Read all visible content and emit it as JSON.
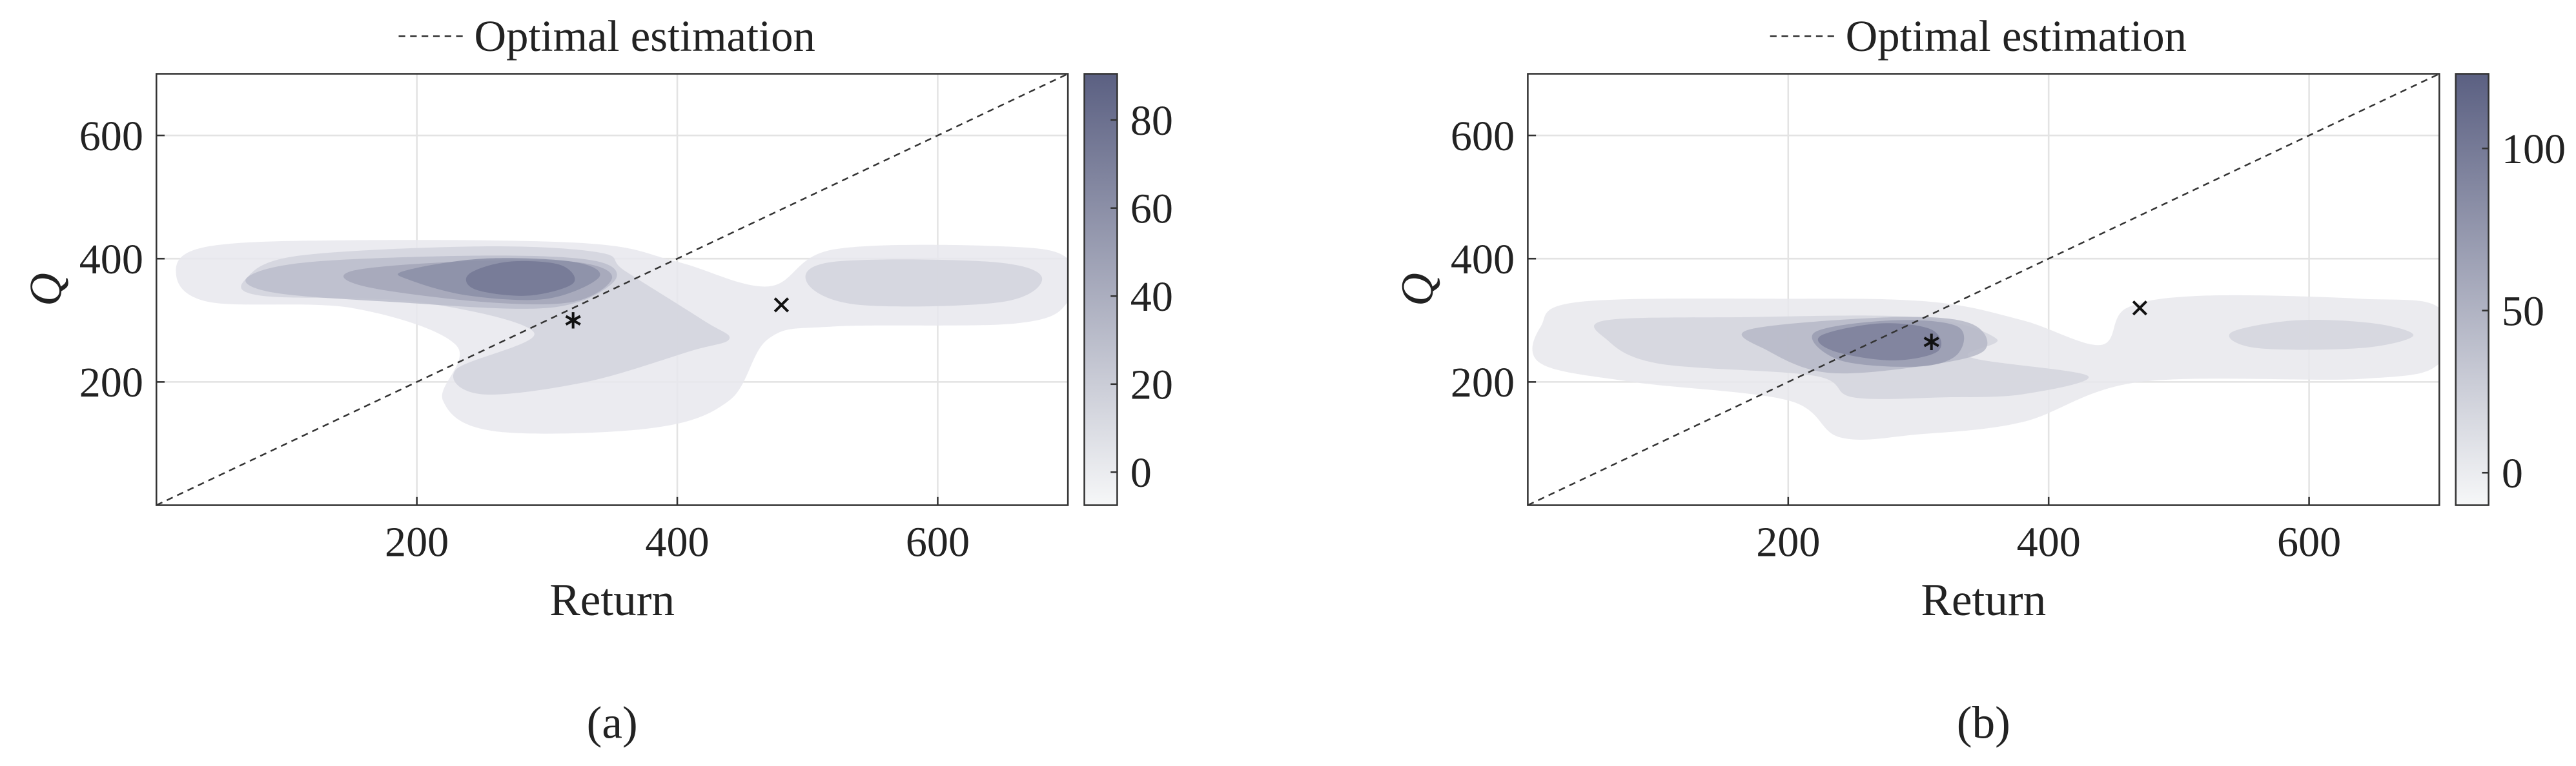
{
  "chart_data": [
    {
      "type": "contour",
      "caption": "(a)",
      "xlabel": "Return",
      "ylabel": "Q",
      "xlim": [
        0,
        700
      ],
      "ylim": [
        0,
        700
      ],
      "xticks": [
        200,
        400,
        600
      ],
      "yticks": [
        200,
        400,
        600
      ],
      "grid": true,
      "clim": [
        -7.5,
        90.5
      ],
      "cticks": [
        0,
        20,
        40,
        60,
        80
      ],
      "colormap": [
        "#f6f7f8",
        "#5b6082"
      ],
      "series": [
        {
          "name": "Optimal estimation",
          "x": [
            0,
            700
          ],
          "y": [
            0,
            700
          ],
          "color": "#333333",
          "style": "dashed"
        }
      ],
      "contours": [
        {
          "level": 2,
          "regions": [
            [
              [
                15,
                380
              ],
              [
                40,
                420
              ],
              [
                150,
                430
              ],
              [
                330,
                425
              ],
              [
                400,
                395
              ],
              [
                470,
                355
              ],
              [
                520,
                415
              ],
              [
                650,
                420
              ],
              [
                700,
                400
              ],
              [
                700,
                330
              ],
              [
                660,
                295
              ],
              [
                520,
                290
              ],
              [
                470,
                270
              ],
              [
                440,
                170
              ],
              [
                380,
                125
              ],
              [
                260,
                120
              ],
              [
                220,
                170
              ],
              [
                230,
                260
              ],
              [
                150,
                320
              ],
              [
                40,
                330
              ]
            ]
          ]
        },
        {
          "level": 15,
          "regions": [
            [
              [
                70,
                370
              ],
              [
                110,
                405
              ],
              [
                250,
                420
              ],
              [
                340,
                410
              ],
              [
                360,
                380
              ],
              [
                420,
                300
              ],
              [
                440,
                270
              ],
              [
                410,
                250
              ],
              [
                330,
                200
              ],
              [
                250,
                180
              ],
              [
                230,
                220
              ],
              [
                290,
                280
              ],
              [
                200,
                330
              ],
              [
                80,
                340
              ]
            ],
            [
              [
                500,
                360
              ],
              [
                520,
                395
              ],
              [
                640,
                395
              ],
              [
                680,
                370
              ],
              [
                650,
                330
              ],
              [
                540,
                325
              ]
            ]
          ]
        },
        {
          "level": 30,
          "regions": [
            [
              [
                70,
                370
              ],
              [
                120,
                395
              ],
              [
                260,
                405
              ],
              [
                340,
                395
              ],
              [
                350,
                360
              ],
              [
                300,
                320
              ],
              [
                180,
                330
              ],
              [
                90,
                345
              ]
            ]
          ]
        },
        {
          "level": 45,
          "regions": [
            [
              [
                150,
                380
              ],
              [
                230,
                395
              ],
              [
                320,
                395
              ],
              [
                350,
                370
              ],
              [
                320,
                330
              ],
              [
                250,
                330
              ],
              [
                160,
                355
              ]
            ]
          ]
        },
        {
          "level": 60,
          "regions": [
            [
              [
                190,
                380
              ],
              [
                250,
                400
              ],
              [
                320,
                395
              ],
              [
                340,
                370
              ],
              [
                300,
                335
              ],
              [
                240,
                340
              ],
              [
                195,
                365
              ]
            ]
          ]
        },
        {
          "level": 75,
          "regions": [
            [
              [
                240,
                375
              ],
              [
                270,
                395
              ],
              [
                310,
                390
              ],
              [
                320,
                360
              ],
              [
                285,
                340
              ],
              [
                245,
                350
              ]
            ]
          ]
        }
      ],
      "markers": [
        {
          "x": 320,
          "y": 300,
          "marker": "*"
        },
        {
          "x": 480,
          "y": 325,
          "marker": "x"
        }
      ]
    },
    {
      "type": "contour",
      "caption": "(b)",
      "xlabel": "Return",
      "ylabel": "Q",
      "xlim": [
        0,
        700
      ],
      "ylim": [
        0,
        700
      ],
      "xticks": [
        200,
        400,
        600
      ],
      "yticks": [
        200,
        400,
        600
      ],
      "grid": true,
      "clim": [
        -10,
        123
      ],
      "cticks": [
        0,
        50,
        100
      ],
      "colormap": [
        "#f6f7f8",
        "#5b6082"
      ],
      "series": [
        {
          "name": "Optimal estimation",
          "x": [
            0,
            700
          ],
          "y": [
            0,
            700
          ],
          "color": "#333333",
          "style": "dashed"
        }
      ],
      "contours": [
        {
          "level": 3,
          "regions": [
            [
              [
                10,
                290
              ],
              [
                40,
                330
              ],
              [
                200,
                335
              ],
              [
                310,
                330
              ],
              [
                380,
                300
              ],
              [
                440,
                260
              ],
              [
                460,
                320
              ],
              [
                520,
                340
              ],
              [
                640,
                335
              ],
              [
                700,
                320
              ],
              [
                700,
                230
              ],
              [
                640,
                205
              ],
              [
                470,
                200
              ],
              [
                380,
                135
              ],
              [
                300,
                115
              ],
              [
                240,
                110
              ],
              [
                200,
                170
              ],
              [
                80,
                200
              ],
              [
                10,
                230
              ]
            ]
          ]
        },
        {
          "level": 20,
          "regions": [
            [
              [
                60,
                300
              ],
              [
                160,
                305
              ],
              [
                300,
                305
              ],
              [
                360,
                270
              ],
              [
                340,
                240
              ],
              [
                430,
                210
              ],
              [
                380,
                180
              ],
              [
                320,
                175
              ],
              [
                250,
                175
              ],
              [
                220,
                210
              ],
              [
                100,
                230
              ],
              [
                60,
                270
              ]
            ],
            [
              [
                540,
                280
              ],
              [
                590,
                300
              ],
              [
                650,
                295
              ],
              [
                680,
                275
              ],
              [
                640,
                255
              ],
              [
                560,
                255
              ]
            ]
          ]
        },
        {
          "level": 45,
          "regions": [
            [
              [
                170,
                285
              ],
              [
                280,
                305
              ],
              [
                340,
                295
              ],
              [
                350,
                250
              ],
              [
                300,
                225
              ],
              [
                230,
                215
              ],
              [
                185,
                250
              ]
            ]
          ]
        },
        {
          "level": 70,
          "regions": [
            [
              [
                220,
                280
              ],
              [
                280,
                300
              ],
              [
                330,
                290
              ],
              [
                330,
                245
              ],
              [
                300,
                225
              ],
              [
                240,
                235
              ]
            ]
          ]
        },
        {
          "level": 95,
          "regions": [
            [
              [
                225,
                275
              ],
              [
                270,
                295
              ],
              [
                310,
                285
              ],
              [
                315,
                250
              ],
              [
                280,
                235
              ],
              [
                235,
                250
              ]
            ]
          ]
        }
      ],
      "markers": [
        {
          "x": 310,
          "y": 265,
          "marker": "*"
        },
        {
          "x": 470,
          "y": 320,
          "marker": "x"
        }
      ]
    }
  ]
}
